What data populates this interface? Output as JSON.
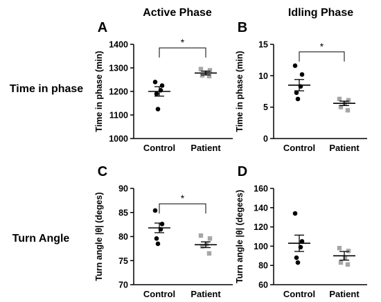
{
  "column_titles": [
    "Active Phase",
    "Idling Phase"
  ],
  "row_labels": [
    "Time in phase",
    "Turn Angle"
  ],
  "colors": {
    "control": "#000000",
    "patient": "#a6a6a6",
    "axis": "#000000"
  },
  "chart_data": [
    {
      "panel": "A",
      "type": "scatter",
      "ylabel": "Time in phase (min)",
      "ylim": [
        1000,
        1400
      ],
      "yticks": [
        1000,
        1100,
        1200,
        1300,
        1400
      ],
      "categories": [
        "Control",
        "Patient"
      ],
      "series": [
        {
          "name": "Control",
          "values": [
            1240,
            1225,
            1205,
            1190,
            1125
          ],
          "mean": 1200,
          "sem": 20
        },
        {
          "name": "Patient",
          "values": [
            1295,
            1290,
            1280,
            1268,
            1265
          ],
          "mean": 1278,
          "sem": 8
        }
      ],
      "significance": {
        "label": "*",
        "between": [
          0,
          1
        ],
        "y": 1385
      }
    },
    {
      "panel": "B",
      "type": "scatter",
      "ylabel": "Time in phase (min)",
      "ylim": [
        0,
        15
      ],
      "yticks": [
        0,
        5,
        10,
        15
      ],
      "categories": [
        "Control",
        "Patient"
      ],
      "series": [
        {
          "name": "Control",
          "values": [
            11.6,
            10.2,
            8.3,
            7.3,
            6.3
          ],
          "mean": 8.5,
          "sem": 0.9
        },
        {
          "name": "Patient",
          "values": [
            6.3,
            6.1,
            5.6,
            5.0,
            4.5
          ],
          "mean": 5.6,
          "sem": 0.35
        }
      ],
      "significance": {
        "label": "*",
        "between": [
          0,
          1
        ],
        "y": 13.8
      }
    },
    {
      "panel": "C",
      "type": "scatter",
      "ylabel": "Turn angle |θ| (deges)",
      "ylim": [
        70,
        90
      ],
      "yticks": [
        70,
        75,
        80,
        85,
        90
      ],
      "categories": [
        "Control",
        "Patient"
      ],
      "series": [
        {
          "name": "Control",
          "values": [
            85.4,
            82.6,
            81.5,
            79.6,
            78.5
          ],
          "mean": 81.8,
          "sem": 1.0
        },
        {
          "name": "Patient",
          "values": [
            80.2,
            79.6,
            78.4,
            78.0,
            76.5
          ],
          "mean": 78.3,
          "sem": 0.6
        }
      ],
      "significance": {
        "label": "*",
        "between": [
          0,
          1
        ],
        "y": 86.8
      }
    },
    {
      "panel": "D",
      "type": "scatter",
      "ylabel": "Turn angle |θ| (degees)",
      "ylim": [
        60,
        160
      ],
      "yticks": [
        60,
        80,
        100,
        120,
        140,
        160
      ],
      "categories": [
        "Control",
        "Patient"
      ],
      "series": [
        {
          "name": "Control",
          "values": [
            134,
            105,
            99,
            88,
            83
          ],
          "mean": 103,
          "sem": 8.5
        },
        {
          "name": "Patient",
          "values": [
            98,
            95,
            88,
            83,
            81
          ],
          "mean": 90,
          "sem": 4.5
        }
      ],
      "significance": null
    }
  ]
}
